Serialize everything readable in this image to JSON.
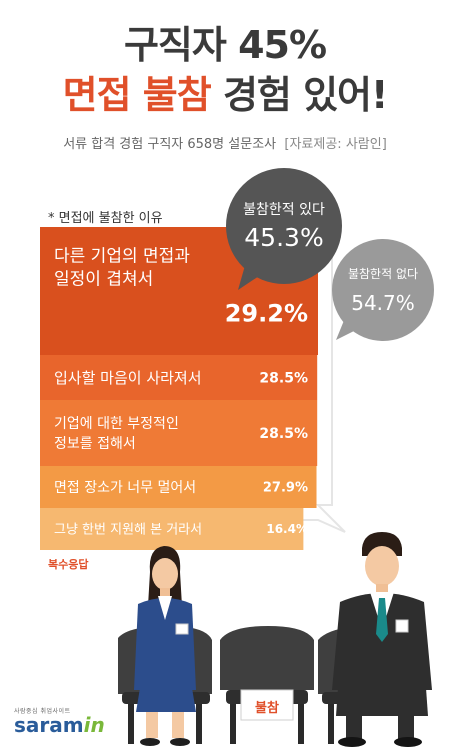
{
  "title_line1": "구직자 45%",
  "title_line2_red": "면접 불참",
  "title_line2_rest": " 경험 있어!",
  "subtitle": "서류 합격 경험 구직자 658명 설문조사",
  "source": "[자료제공: 사람인]",
  "reason_heading": "* 면접에 불참한 이유",
  "multiple_response": "복수응답",
  "chair_sign": "불참",
  "logo": {
    "tagline": "사람중심 취업사이트",
    "name": "saram",
    "suffix": "in"
  },
  "chart_data": [
    {
      "type": "bar",
      "orientation": "horizontal",
      "title": "",
      "categories": [
        "다른 기업의 면접과 일정이 겹쳐서",
        "입사할 마음이 사라져서",
        "기업에 대한 부정적인 정보를 접해서",
        "면접 장소가 너무 멀어서",
        "그냥 한번 지원해 본 거라서"
      ],
      "category_lines": [
        [
          "다른 기업의 면접과",
          "일정이 겹쳐서"
        ],
        [
          "입사할 마음이 사라져서"
        ],
        [
          "기업에 대한 부정적인",
          "정보를 접해서"
        ],
        [
          "면접 장소가 너무 멀어서"
        ],
        [
          "그냥 한번 지원해 본  거라서"
        ]
      ],
      "values": [
        29.2,
        28.5,
        28.5,
        27.9,
        16.4
      ],
      "value_labels": [
        "29.2%",
        "28.5%",
        "28.5%",
        "27.9%",
        "16.4%"
      ],
      "colors": [
        "#d9501e",
        "#e8652c",
        "#ef7a36",
        "#f39a45",
        "#f6b870"
      ]
    },
    {
      "type": "pie",
      "slices": [
        {
          "label": "불참한적 있다",
          "value": 45.3,
          "value_label": "45.3%",
          "color": "#555555"
        },
        {
          "label": "불참한적 없다",
          "value": 54.7,
          "value_label": "54.7%",
          "color": "#9a9a9a"
        }
      ]
    }
  ]
}
